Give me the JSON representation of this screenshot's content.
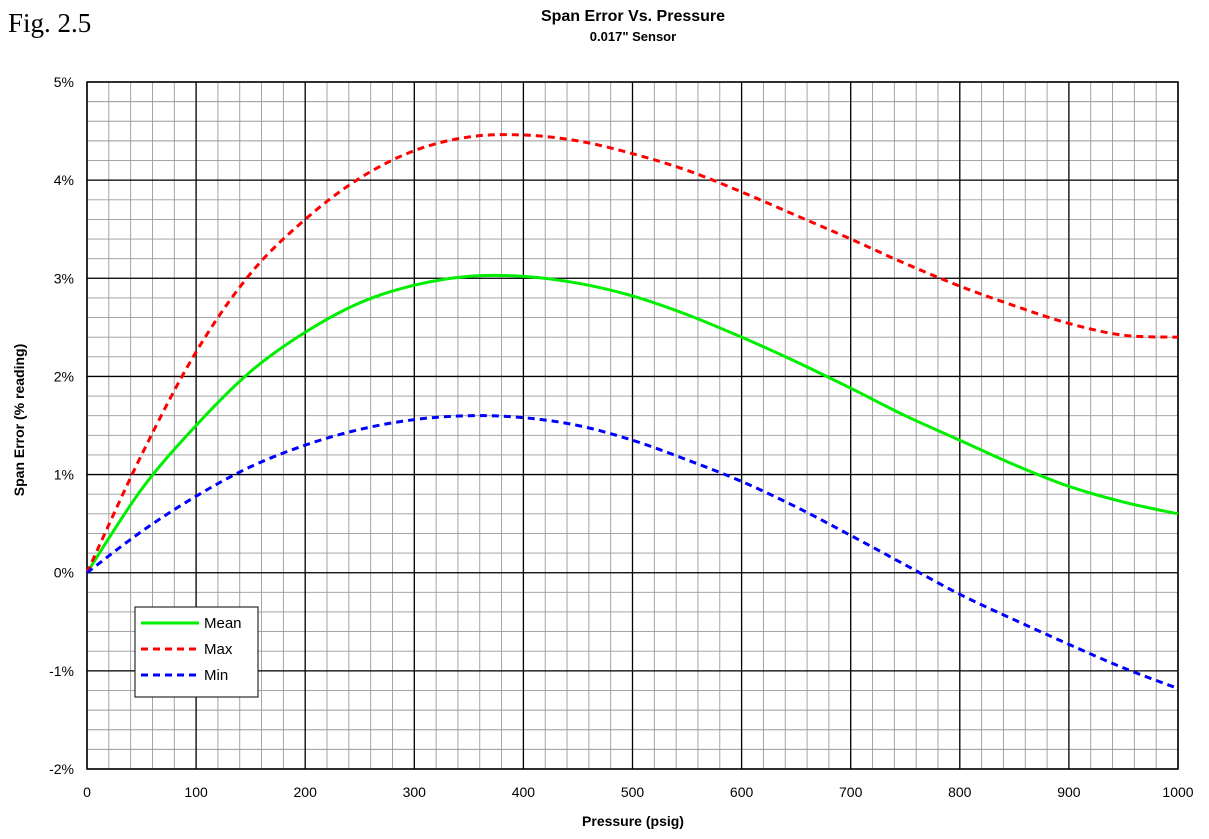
{
  "figure_label": "Fig. 2.5",
  "chart_data": {
    "type": "line",
    "title": "Span Error Vs. Pressure",
    "subtitle": "0.017\" Sensor",
    "xlabel": "Pressure (psig)",
    "ylabel": "Span Error (% reading)",
    "xlim": [
      0,
      1000
    ],
    "ylim": [
      -2,
      5
    ],
    "x_ticks": [
      0,
      100,
      200,
      300,
      400,
      500,
      600,
      700,
      800,
      900,
      1000
    ],
    "y_ticks": [
      -2,
      -1,
      0,
      1,
      2,
      3,
      4,
      5
    ],
    "x_tick_labels": [
      "0",
      "100",
      "200",
      "300",
      "400",
      "500",
      "600",
      "700",
      "800",
      "900",
      "1000"
    ],
    "y_tick_labels": [
      "-2%",
      "-1%",
      "0%",
      "1%",
      "2%",
      "3%",
      "4%",
      "5%"
    ],
    "grid": true,
    "legend_position": "bottom-left",
    "x": [
      0,
      50,
      100,
      150,
      200,
      250,
      300,
      350,
      400,
      450,
      500,
      550,
      600,
      650,
      700,
      750,
      800,
      850,
      900,
      950,
      1000
    ],
    "series": [
      {
        "name": "Mean",
        "color": "#00ee00",
        "style": "solid",
        "values": [
          0.0,
          0.85,
          1.5,
          2.05,
          2.45,
          2.75,
          2.93,
          3.02,
          3.02,
          2.95,
          2.82,
          2.63,
          2.4,
          2.15,
          1.88,
          1.6,
          1.35,
          1.1,
          0.88,
          0.72,
          0.6
        ]
      },
      {
        "name": "Max",
        "color": "#ff0000",
        "style": "dashed",
        "values": [
          0.0,
          1.2,
          2.25,
          3.05,
          3.6,
          4.02,
          4.3,
          4.44,
          4.46,
          4.4,
          4.27,
          4.1,
          3.88,
          3.64,
          3.4,
          3.15,
          2.92,
          2.72,
          2.54,
          2.42,
          2.4
        ]
      },
      {
        "name": "Min",
        "color": "#0000ff",
        "style": "dashed",
        "values": [
          0.0,
          0.42,
          0.78,
          1.08,
          1.3,
          1.46,
          1.56,
          1.6,
          1.58,
          1.5,
          1.35,
          1.15,
          0.93,
          0.67,
          0.38,
          0.08,
          -0.22,
          -0.48,
          -0.73,
          -0.97,
          -1.18
        ]
      }
    ]
  }
}
